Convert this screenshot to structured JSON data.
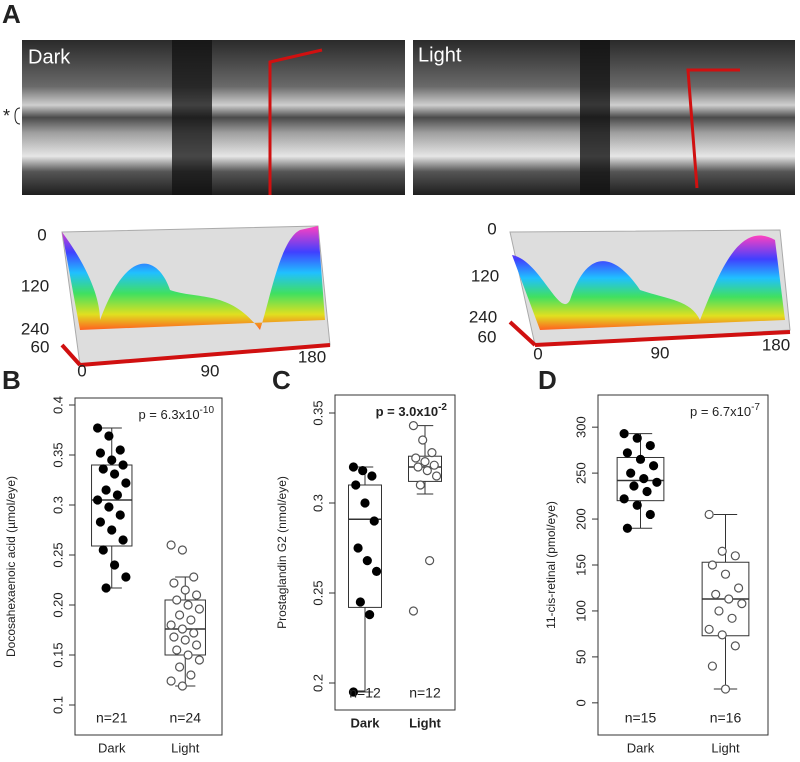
{
  "panel_a": {
    "letter": "A",
    "asterisk": "*",
    "images": [
      {
        "label": "Dark"
      },
      {
        "label": "Light"
      }
    ],
    "surfaces": [
      {
        "zticks": [
          0,
          120,
          240
        ],
        "depth_tick": 60,
        "xticks": [
          0,
          90,
          180
        ]
      },
      {
        "zticks": [
          0,
          120,
          240
        ],
        "depth_tick": 60,
        "xticks": [
          0,
          90,
          180
        ]
      }
    ]
  },
  "chart_data": [
    {
      "type": "box",
      "panel": "B",
      "ylabel": "Docosahexaenoic acid (µmol/eye)",
      "annotation": {
        "text": "p = 6.3x10",
        "exponent": "-10"
      },
      "annotation_bold": false,
      "categories": [
        "Dark",
        "Light"
      ],
      "n_labels": [
        "n=21",
        "n=24"
      ],
      "ylim": [
        0.07,
        0.407
      ],
      "yticks": [
        0.1,
        0.15,
        {
          "value": 0.2,
          "label": "0.20"
        },
        0.25,
        0.3,
        0.35,
        0.4
      ],
      "groups": [
        {
          "color": "#000000",
          "filled": true,
          "box": {
            "min": 0.217,
            "q1": 0.259,
            "median": 0.305,
            "q3": 0.34,
            "max": 0.377
          },
          "values": [
            0.377,
            0.369,
            0.355,
            0.352,
            0.345,
            0.34,
            0.336,
            0.331,
            0.322,
            0.315,
            0.31,
            0.305,
            0.298,
            0.29,
            0.283,
            0.275,
            0.265,
            0.255,
            0.24,
            0.228,
            0.217
          ]
        },
        {
          "color": "#555555",
          "filled": false,
          "box": {
            "min": 0.119,
            "q1": 0.15,
            "median": 0.176,
            "q3": 0.205,
            "max": 0.228
          },
          "values": [
            0.26,
            0.255,
            0.228,
            0.222,
            0.215,
            0.21,
            0.205,
            0.2,
            0.196,
            0.19,
            0.185,
            0.18,
            0.176,
            0.172,
            0.168,
            0.165,
            0.16,
            0.155,
            0.15,
            0.145,
            0.138,
            0.13,
            0.124,
            0.119
          ]
        }
      ]
    },
    {
      "type": "box",
      "panel": "C",
      "ylabel": "Prostaglandin G2 (nmol/eye)",
      "annotation": {
        "text": "p = 3.0x10",
        "exponent": "-2"
      },
      "annotation_bold": true,
      "categories": [
        "Dark",
        "Light"
      ],
      "n_labels": [
        "n=12",
        "n=12"
      ],
      "ylim": [
        0.185,
        0.36
      ],
      "yticks": [
        0.2,
        0.25,
        0.3,
        0.35
      ],
      "groups": [
        {
          "color": "#000000",
          "filled": true,
          "box": {
            "min": 0.195,
            "q1": 0.242,
            "median": 0.291,
            "q3": 0.31,
            "max": 0.32
          },
          "values": [
            0.32,
            0.318,
            0.315,
            0.31,
            0.3,
            0.29,
            0.275,
            0.268,
            0.262,
            0.245,
            0.238,
            0.195
          ]
        },
        {
          "color": "#555555",
          "filled": false,
          "box": {
            "min": 0.305,
            "q1": 0.312,
            "median": 0.32,
            "q3": 0.326,
            "max": 0.343
          },
          "values": [
            0.343,
            0.335,
            0.328,
            0.325,
            0.323,
            0.321,
            0.32,
            0.318,
            0.315,
            0.31,
            0.268,
            0.24
          ]
        }
      ]
    },
    {
      "type": "box",
      "panel": "D",
      "ylabel": "11-cis-retinal (pmol/eye)",
      "annotation": {
        "text": "p = 6.7x10",
        "exponent": "-7"
      },
      "annotation_bold": false,
      "categories": [
        "Dark",
        "Light"
      ],
      "n_labels": [
        "n=15",
        "n=16"
      ],
      "ylim": [
        -35,
        335
      ],
      "yticks": [
        0,
        50,
        100,
        150,
        200,
        250,
        300
      ],
      "groups": [
        {
          "color": "#000000",
          "filled": true,
          "box": {
            "min": 190,
            "q1": 220,
            "median": 242,
            "q3": 267,
            "max": 293
          },
          "values": [
            293,
            288,
            280,
            272,
            265,
            258,
            250,
            244,
            240,
            236,
            230,
            222,
            215,
            205,
            190
          ]
        },
        {
          "color": "#555555",
          "filled": false,
          "box": {
            "min": 15,
            "q1": 73,
            "median": 113,
            "q3": 153,
            "max": 205
          },
          "values": [
            205,
            165,
            160,
            150,
            140,
            125,
            118,
            113,
            108,
            100,
            92,
            80,
            74,
            62,
            40,
            15
          ]
        }
      ]
    }
  ]
}
